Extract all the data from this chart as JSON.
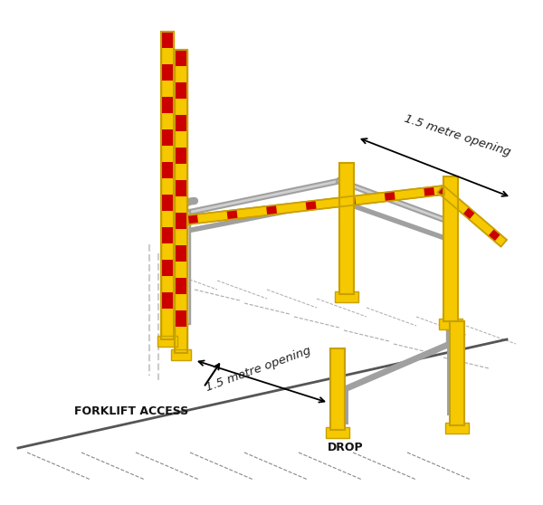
{
  "bg_color": "#ffffff",
  "yellow": "#F5C800",
  "yellow_dark": "#C8A000",
  "gray": "#A0A0A0",
  "gray_dark": "#707070",
  "gray_light": "#D0D0D0",
  "red": "#CC0000",
  "black": "#000000",
  "dim_color": "#222222",
  "text_color": "#111111",
  "title": "1.5 metre opening",
  "label_forklift": "FORKLIFT ACCESS",
  "label_drop": "DROP",
  "label_opening_top": "1.5 metre opening",
  "label_opening_bottom": "1.5 metre opening"
}
